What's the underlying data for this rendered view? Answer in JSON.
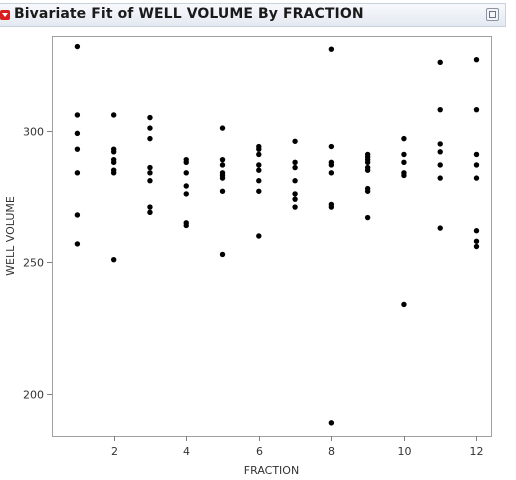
{
  "report": {
    "title": "Bivariate Fit of WELL VOLUME By FRACTION"
  },
  "colors": {
    "point": "#000000",
    "frame": "#a0a0a0",
    "header_bg": "#e8ecf2",
    "disclosure": "#d81e1e"
  },
  "icons": {
    "disclosure": "red-triangle-menu-icon",
    "maximize": "maximize-icon"
  },
  "chart_data": {
    "type": "scatter",
    "title": "",
    "xlabel": "FRACTION",
    "ylabel": "WELL VOLUME",
    "xlim": [
      0.3,
      12.4
    ],
    "ylim": [
      184,
      336
    ],
    "xticks": [
      2,
      4,
      6,
      8,
      10,
      12
    ],
    "yticks": [
      200,
      250,
      300
    ],
    "grid": false,
    "legend": "none",
    "series": [
      {
        "points": [
          [
            1,
            332
          ],
          [
            1,
            306
          ],
          [
            1,
            299
          ],
          [
            1,
            293
          ],
          [
            1,
            284
          ],
          [
            1,
            268
          ],
          [
            1,
            257
          ],
          [
            2,
            306
          ],
          [
            2,
            293
          ],
          [
            2,
            292
          ],
          [
            2,
            289
          ],
          [
            2,
            288
          ],
          [
            2,
            285
          ],
          [
            2,
            284
          ],
          [
            2,
            251
          ],
          [
            3,
            305
          ],
          [
            3,
            301
          ],
          [
            3,
            297
          ],
          [
            3,
            286
          ],
          [
            3,
            284
          ],
          [
            3,
            281
          ],
          [
            3,
            271
          ],
          [
            3,
            269
          ],
          [
            4,
            289
          ],
          [
            4,
            288
          ],
          [
            4,
            284
          ],
          [
            4,
            279
          ],
          [
            4,
            276
          ],
          [
            4,
            265
          ],
          [
            4,
            264
          ],
          [
            5,
            301
          ],
          [
            5,
            289
          ],
          [
            5,
            287
          ],
          [
            5,
            284
          ],
          [
            5,
            283
          ],
          [
            5,
            282
          ],
          [
            5,
            277
          ],
          [
            5,
            253
          ],
          [
            6,
            294
          ],
          [
            6,
            293
          ],
          [
            6,
            291
          ],
          [
            6,
            287
          ],
          [
            6,
            285
          ],
          [
            6,
            281
          ],
          [
            6,
            277
          ],
          [
            6,
            260
          ],
          [
            7,
            296
          ],
          [
            7,
            288
          ],
          [
            7,
            286
          ],
          [
            7,
            281
          ],
          [
            7,
            276
          ],
          [
            7,
            274
          ],
          [
            7,
            271
          ],
          [
            8,
            331
          ],
          [
            8,
            294
          ],
          [
            8,
            288
          ],
          [
            8,
            287
          ],
          [
            8,
            284
          ],
          [
            8,
            272
          ],
          [
            8,
            271
          ],
          [
            8,
            189
          ],
          [
            9,
            291
          ],
          [
            9,
            290
          ],
          [
            9,
            289
          ],
          [
            9,
            288
          ],
          [
            9,
            286
          ],
          [
            9,
            285
          ],
          [
            9,
            278
          ],
          [
            9,
            277
          ],
          [
            9,
            267
          ],
          [
            10,
            297
          ],
          [
            10,
            291
          ],
          [
            10,
            288
          ],
          [
            10,
            284
          ],
          [
            10,
            283
          ],
          [
            10,
            234
          ],
          [
            11,
            326
          ],
          [
            11,
            308
          ],
          [
            11,
            295
          ],
          [
            11,
            292
          ],
          [
            11,
            287
          ],
          [
            11,
            282
          ],
          [
            11,
            263
          ],
          [
            12,
            327
          ],
          [
            12,
            308
          ],
          [
            12,
            291
          ],
          [
            12,
            287
          ],
          [
            12,
            282
          ],
          [
            12,
            262
          ],
          [
            12,
            258
          ],
          [
            12,
            256
          ]
        ]
      }
    ]
  }
}
